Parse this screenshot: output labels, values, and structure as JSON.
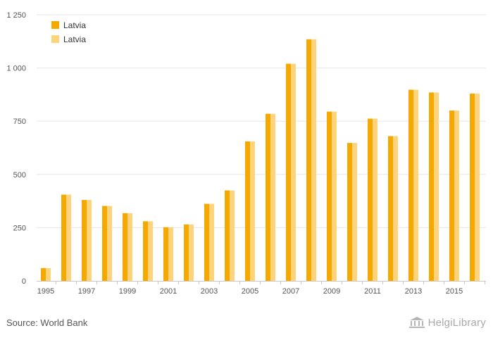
{
  "chart_data": {
    "type": "bar",
    "categories": [
      "1995",
      "1996",
      "1997",
      "1998",
      "1999",
      "2000",
      "2001",
      "2002",
      "2003",
      "2004",
      "2005",
      "2006",
      "2007",
      "2008",
      "2009",
      "2010",
      "2011",
      "2012",
      "2013",
      "2014",
      "2015",
      "2016"
    ],
    "x_tick_labels": [
      "1995",
      "1997",
      "1999",
      "2001",
      "2003",
      "2005",
      "2007",
      "2009",
      "2011",
      "2013",
      "2015"
    ],
    "y_tick_labels": [
      "0",
      "250",
      "500",
      "750",
      "1 000",
      "1 250"
    ],
    "ylim": [
      0,
      1250
    ],
    "series": [
      {
        "name": "Latvia",
        "color": "#f5a800",
        "values": [
          60,
          405,
          380,
          352,
          318,
          280,
          252,
          265,
          362,
          425,
          655,
          785,
          1020,
          1135,
          795,
          648,
          762,
          680,
          898,
          885,
          800,
          880
        ]
      },
      {
        "name": "Latvia",
        "color": "#fdd47c",
        "values": [
          60,
          405,
          380,
          352,
          318,
          280,
          252,
          265,
          362,
          425,
          655,
          785,
          1020,
          1135,
          795,
          648,
          762,
          680,
          898,
          885,
          800,
          880
        ]
      }
    ],
    "grid": true,
    "legend_position": "top-left"
  },
  "footer": {
    "source": "Source: World Bank",
    "brand": "HelgiLibrary"
  },
  "brand_icon": "library-building-icon"
}
